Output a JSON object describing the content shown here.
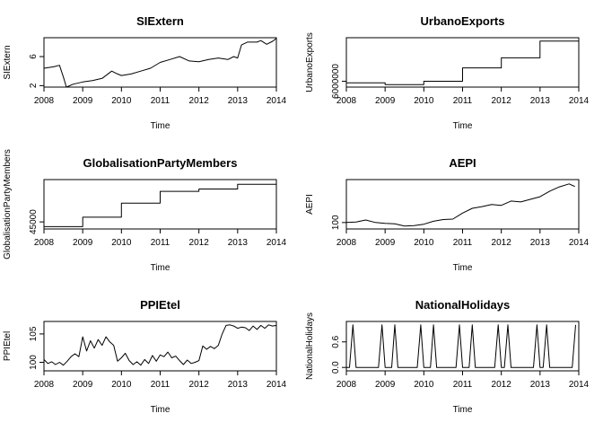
{
  "chart_data": [
    {
      "type": "line",
      "title": "SIExtern",
      "xlabel": "Time",
      "ylabel": "SIExtern",
      "xlim": [
        2008,
        2014
      ],
      "ylim": [
        1.8,
        8.6
      ],
      "xticks": [
        2008,
        2009,
        2010,
        2011,
        2012,
        2013,
        2014
      ],
      "yticks": [
        2,
        6
      ],
      "x": [
        2008.0,
        2008.25,
        2008.4,
        2008.5,
        2008.58,
        2008.75,
        2009.0,
        2009.25,
        2009.5,
        2009.75,
        2009.9,
        2010.0,
        2010.25,
        2010.5,
        2010.75,
        2011.0,
        2011.25,
        2011.5,
        2011.75,
        2012.0,
        2012.25,
        2012.5,
        2012.75,
        2012.9,
        2013.0,
        2013.1,
        2013.25,
        2013.5,
        2013.6,
        2013.75,
        2013.9,
        2014.0
      ],
      "y": [
        4.4,
        4.6,
        4.8,
        3.2,
        1.8,
        2.2,
        2.5,
        2.7,
        3.0,
        4.0,
        3.6,
        3.4,
        3.6,
        4.0,
        4.4,
        5.2,
        5.6,
        6.0,
        5.4,
        5.3,
        5.6,
        5.8,
        5.6,
        6.0,
        5.8,
        7.6,
        8.0,
        8.0,
        8.2,
        7.7,
        8.1,
        8.5
      ]
    },
    {
      "type": "line",
      "title": "UrbanoExports",
      "xlabel": "Time",
      "ylabel": "UrbanoExports",
      "xlim": [
        2008,
        2014
      ],
      "ylim": [
        5650000,
        8600000
      ],
      "xticks": [
        2008,
        2009,
        2010,
        2011,
        2012,
        2013,
        2014
      ],
      "yticks": [
        6000000
      ],
      "x": [
        2008.0,
        2009.0,
        2009.0,
        2010.0,
        2010.0,
        2011.0,
        2011.0,
        2012.0,
        2012.0,
        2013.0,
        2013.0,
        2014.0
      ],
      "y": [
        5900000,
        5900000,
        5800000,
        5800000,
        6000000,
        6000000,
        6800000,
        6800000,
        7400000,
        7400000,
        8400000,
        8400000
      ]
    },
    {
      "type": "line",
      "title": "GlobalisationPartyMembers",
      "xlabel": "Time",
      "ylabel": "GlobalisationPartyMembers",
      "xlim": [
        2008,
        2014
      ],
      "ylim": [
        43500,
        54000
      ],
      "xticks": [
        2008,
        2009,
        2010,
        2011,
        2012,
        2013,
        2014
      ],
      "yticks": [
        45000
      ],
      "x": [
        2008.0,
        2009.0,
        2009.0,
        2010.0,
        2010.0,
        2011.0,
        2011.0,
        2012.0,
        2012.0,
        2013.0,
        2013.0,
        2014.0
      ],
      "y": [
        44000,
        44000,
        46000,
        46000,
        49000,
        49000,
        51500,
        51500,
        52000,
        52000,
        53000,
        53000
      ]
    },
    {
      "type": "line",
      "title": "AEPI",
      "xlabel": "Time",
      "ylabel": "AEPI",
      "xlim": [
        2008,
        2014
      ],
      "ylim": [
        85,
        200
      ],
      "xticks": [
        2008,
        2009,
        2010,
        2011,
        2012,
        2013,
        2014
      ],
      "yticks": [
        100
      ],
      "x": [
        2008.0,
        2008.25,
        2008.5,
        2008.75,
        2009.0,
        2009.25,
        2009.5,
        2009.75,
        2010.0,
        2010.25,
        2010.5,
        2010.75,
        2011.0,
        2011.25,
        2011.5,
        2011.75,
        2012.0,
        2012.25,
        2012.5,
        2012.75,
        2013.0,
        2013.25,
        2013.5,
        2013.75,
        2013.9
      ],
      "y": [
        100,
        101,
        106,
        100,
        98,
        97,
        92,
        93,
        96,
        103,
        107,
        108,
        122,
        133,
        137,
        142,
        140,
        150,
        148,
        154,
        160,
        173,
        183,
        190,
        184
      ]
    },
    {
      "type": "line",
      "title": "PPIEtel",
      "xlabel": "Time",
      "ylabel": "PPIEtel",
      "xlim": [
        2008,
        2014
      ],
      "ylim": [
        98.5,
        107.2
      ],
      "xticks": [
        2008,
        2009,
        2010,
        2011,
        2012,
        2013,
        2014
      ],
      "yticks": [
        100,
        105
      ],
      "x": [
        2008.0,
        2008.1,
        2008.2,
        2008.3,
        2008.4,
        2008.5,
        2008.6,
        2008.7,
        2008.8,
        2008.9,
        2009.0,
        2009.1,
        2009.2,
        2009.3,
        2009.4,
        2009.5,
        2009.6,
        2009.7,
        2009.8,
        2009.9,
        2010.0,
        2010.1,
        2010.2,
        2010.3,
        2010.4,
        2010.5,
        2010.6,
        2010.7,
        2010.8,
        2010.9,
        2011.0,
        2011.1,
        2011.2,
        2011.3,
        2011.4,
        2011.5,
        2011.6,
        2011.7,
        2011.8,
        2011.9,
        2012.0,
        2012.1,
        2012.2,
        2012.3,
        2012.4,
        2012.5,
        2012.6,
        2012.7,
        2012.8,
        2012.9,
        2013.0,
        2013.1,
        2013.2,
        2013.3,
        2013.4,
        2013.5,
        2013.6,
        2013.7,
        2013.8,
        2013.9,
        2014.0
      ],
      "y": [
        100.5,
        99.8,
        100.1,
        99.6,
        100.0,
        99.5,
        100.2,
        101.0,
        101.5,
        101.0,
        104.5,
        102.0,
        103.8,
        102.5,
        104.0,
        103.0,
        104.5,
        103.6,
        103.0,
        100.2,
        100.8,
        101.6,
        100.3,
        99.6,
        100.1,
        99.5,
        100.5,
        99.8,
        101.2,
        100.2,
        101.3,
        101.0,
        101.8,
        100.8,
        101.1,
        100.3,
        99.6,
        100.4,
        99.8,
        100.0,
        100.3,
        102.9,
        102.3,
        102.8,
        102.4,
        103.0,
        105.0,
        106.5,
        106.6,
        106.4,
        106.0,
        106.2,
        106.1,
        105.6,
        106.4,
        105.8,
        106.5,
        106.0,
        106.6,
        106.4,
        106.5
      ]
    },
    {
      "type": "line",
      "title": "NationalHolidays",
      "xlabel": "Time",
      "ylabel": "NationalHolidays",
      "xlim": [
        2008,
        2014
      ],
      "ylim": [
        -0.08,
        1.08
      ],
      "xticks": [
        2008,
        2009,
        2010,
        2011,
        2012,
        2013,
        2014
      ],
      "yticks": [
        0.0,
        0.6
      ],
      "yticklabels": [
        "0.0",
        "0.6"
      ],
      "x": [
        2008.0,
        2008.08,
        2008.17,
        2008.25,
        2008.33,
        2008.42,
        2008.5,
        2008.58,
        2008.67,
        2008.75,
        2008.83,
        2008.92,
        2009.0,
        2009.08,
        2009.17,
        2009.25,
        2009.33,
        2009.42,
        2009.5,
        2009.58,
        2009.67,
        2009.75,
        2009.83,
        2009.92,
        2010.0,
        2010.08,
        2010.17,
        2010.25,
        2010.33,
        2010.42,
        2010.5,
        2010.58,
        2010.67,
        2010.75,
        2010.83,
        2010.92,
        2011.0,
        2011.08,
        2011.17,
        2011.25,
        2011.33,
        2011.42,
        2011.5,
        2011.58,
        2011.67,
        2011.75,
        2011.83,
        2011.92,
        2012.0,
        2012.08,
        2012.17,
        2012.25,
        2012.33,
        2012.42,
        2012.5,
        2012.58,
        2012.67,
        2012.75,
        2012.83,
        2012.92,
        2013.0,
        2013.08,
        2013.17,
        2013.25,
        2013.33,
        2013.42,
        2013.5,
        2013.58,
        2013.67,
        2013.75,
        2013.83,
        2013.92
      ],
      "y": [
        0,
        0,
        1,
        0,
        0,
        0,
        0,
        0,
        0,
        0,
        0,
        1,
        0,
        0,
        0,
        1,
        0,
        0,
        0,
        0,
        0,
        0,
        0,
        1,
        0,
        0,
        0,
        1,
        0,
        0,
        0,
        0,
        0,
        0,
        0,
        1,
        0,
        0,
        0,
        1,
        0,
        0,
        0,
        0,
        0,
        0,
        0,
        1,
        0,
        0,
        1,
        0,
        0,
        0,
        0,
        0,
        0,
        0,
        0,
        1,
        0,
        0,
        1,
        0,
        0,
        0,
        0,
        0,
        0,
        0,
        0,
        1
      ]
    }
  ]
}
